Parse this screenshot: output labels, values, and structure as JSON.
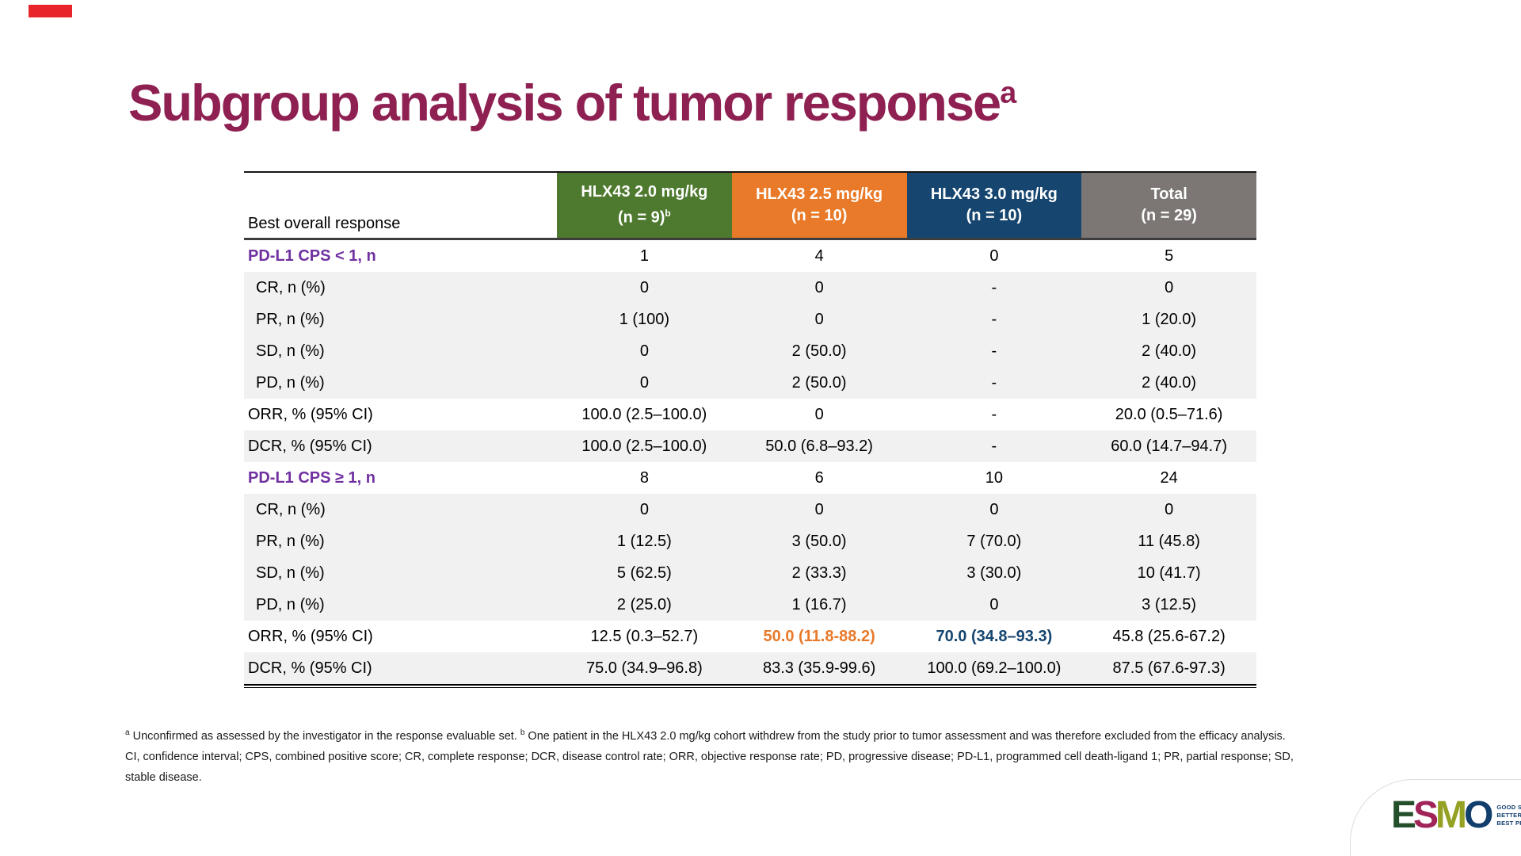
{
  "slide": {
    "title": "Subgroup analysis of tumor response",
    "title_superscript": "a"
  },
  "colors": {
    "title": "#8e2052",
    "red_accent_bar": "#e8252b",
    "section_label_purple": "#7030a0",
    "highlight_orange": "#e87a29",
    "highlight_blue": "#16466f",
    "shaded_row": "#f1f1f1",
    "esmo_tagline_blue": "#123e6c"
  },
  "table": {
    "row_header_label": "Best overall response",
    "columns": [
      {
        "line1": "HLX43 2.0 mg/kg",
        "line2": "(n = 9)",
        "line2_superscript": "b",
        "color": "#4d7a2e"
      },
      {
        "line1": "HLX43 2.5 mg/kg",
        "line2": "(n = 10)",
        "line2_superscript": "",
        "color": "#e87a29"
      },
      {
        "line1": "HLX43 3.0 mg/kg",
        "line2": "(n = 10)",
        "line2_superscript": "",
        "color": "#16466f"
      },
      {
        "line1": "Total",
        "line2": "(n = 29)",
        "line2_superscript": "",
        "color": "#7c7774"
      }
    ],
    "rows": [
      {
        "label": "PD-L1 CPS < 1, n",
        "section": true,
        "indent": false,
        "shaded": false,
        "values": [
          "1",
          "4",
          "0",
          "5"
        ],
        "value_styles": {}
      },
      {
        "label": "CR, n (%)",
        "section": false,
        "indent": true,
        "shaded": true,
        "values": [
          "0",
          "0",
          "-",
          "0"
        ],
        "value_styles": {}
      },
      {
        "label": "PR, n (%)",
        "section": false,
        "indent": true,
        "shaded": true,
        "values": [
          "1 (100)",
          "0",
          "-",
          "1 (20.0)"
        ],
        "value_styles": {}
      },
      {
        "label": "SD, n (%)",
        "section": false,
        "indent": true,
        "shaded": true,
        "values": [
          "0",
          "2 (50.0)",
          "-",
          "2 (40.0)"
        ],
        "value_styles": {}
      },
      {
        "label": "PD, n (%)",
        "section": false,
        "indent": true,
        "shaded": true,
        "values": [
          "0",
          "2 (50.0)",
          "-",
          "2 (40.0)"
        ],
        "value_styles": {}
      },
      {
        "label": "ORR, % (95% CI)",
        "section": false,
        "indent": false,
        "shaded": false,
        "values": [
          "100.0 (2.5–100.0)",
          "0",
          "-",
          "20.0 (0.5–71.6)"
        ],
        "value_styles": {}
      },
      {
        "label": "DCR, % (95% CI)",
        "section": false,
        "indent": false,
        "shaded": true,
        "values": [
          "100.0 (2.5–100.0)",
          "50.0 (6.8–93.2)",
          "-",
          "60.0 (14.7–94.7)"
        ],
        "value_styles": {}
      },
      {
        "label": "PD-L1 CPS ≥ 1, n",
        "section": true,
        "indent": false,
        "shaded": false,
        "values": [
          "8",
          "6",
          "10",
          "24"
        ],
        "value_styles": {}
      },
      {
        "label": "CR, n (%)",
        "section": false,
        "indent": true,
        "shaded": true,
        "values": [
          "0",
          "0",
          "0",
          "0"
        ],
        "value_styles": {}
      },
      {
        "label": "PR, n (%)",
        "section": false,
        "indent": true,
        "shaded": true,
        "values": [
          "1 (12.5)",
          "3 (50.0)",
          "7 (70.0)",
          "11 (45.8)"
        ],
        "value_styles": {}
      },
      {
        "label": "SD, n (%)",
        "section": false,
        "indent": true,
        "shaded": true,
        "values": [
          "5 (62.5)",
          "2 (33.3)",
          "3 (30.0)",
          "10 (41.7)"
        ],
        "value_styles": {}
      },
      {
        "label": "PD, n (%)",
        "section": false,
        "indent": true,
        "shaded": true,
        "values": [
          "2 (25.0)",
          "1 (16.7)",
          "0",
          "3 (12.5)"
        ],
        "value_styles": {}
      },
      {
        "label": "ORR, % (95% CI)",
        "section": false,
        "indent": false,
        "shaded": false,
        "values": [
          "12.5 (0.3–52.7)",
          "50.0 (11.8-88.2)",
          "70.0 (34.8–93.3)",
          "45.8 (25.6-67.2)"
        ],
        "value_styles": {
          "1": "orange",
          "2": "blue"
        }
      },
      {
        "label": "DCR, % (95% CI)",
        "section": false,
        "indent": false,
        "shaded": true,
        "values": [
          "75.0 (34.9–96.8)",
          "83.3 (35.9-99.6)",
          "100.0 (69.2–100.0)",
          "87.5 (67.6-97.3)"
        ],
        "value_styles": {}
      }
    ]
  },
  "footnotes": {
    "fn_a_sup": "a",
    "fn_a_text": " Unconfirmed as assessed by the investigator in the response evaluable set. ",
    "fn_b_sup": "b",
    "fn_b_text": " One patient in the HLX43 2.0 mg/kg cohort withdrew from the study prior to tumor assessment and was therefore excluded from the efficacy analysis.",
    "abbreviations": "CI, confidence interval; CPS, combined positive score; CR, complete response; DCR, disease control rate; ORR, objective response rate; PD, progressive disease; PD-L1, programmed cell death-ligand 1; PR, partial response; SD, stable disease."
  },
  "logo": {
    "letters": [
      {
        "char": "E",
        "color": "#234f2a"
      },
      {
        "char": "S",
        "color": "#a02458"
      },
      {
        "char": "M",
        "color": "#94a122"
      },
      {
        "char": "O",
        "color": "#123e6c"
      }
    ],
    "tagline": [
      "GOOD SCIENCE",
      "BETTER MEDICINE",
      "BEST PRACTICE"
    ]
  }
}
